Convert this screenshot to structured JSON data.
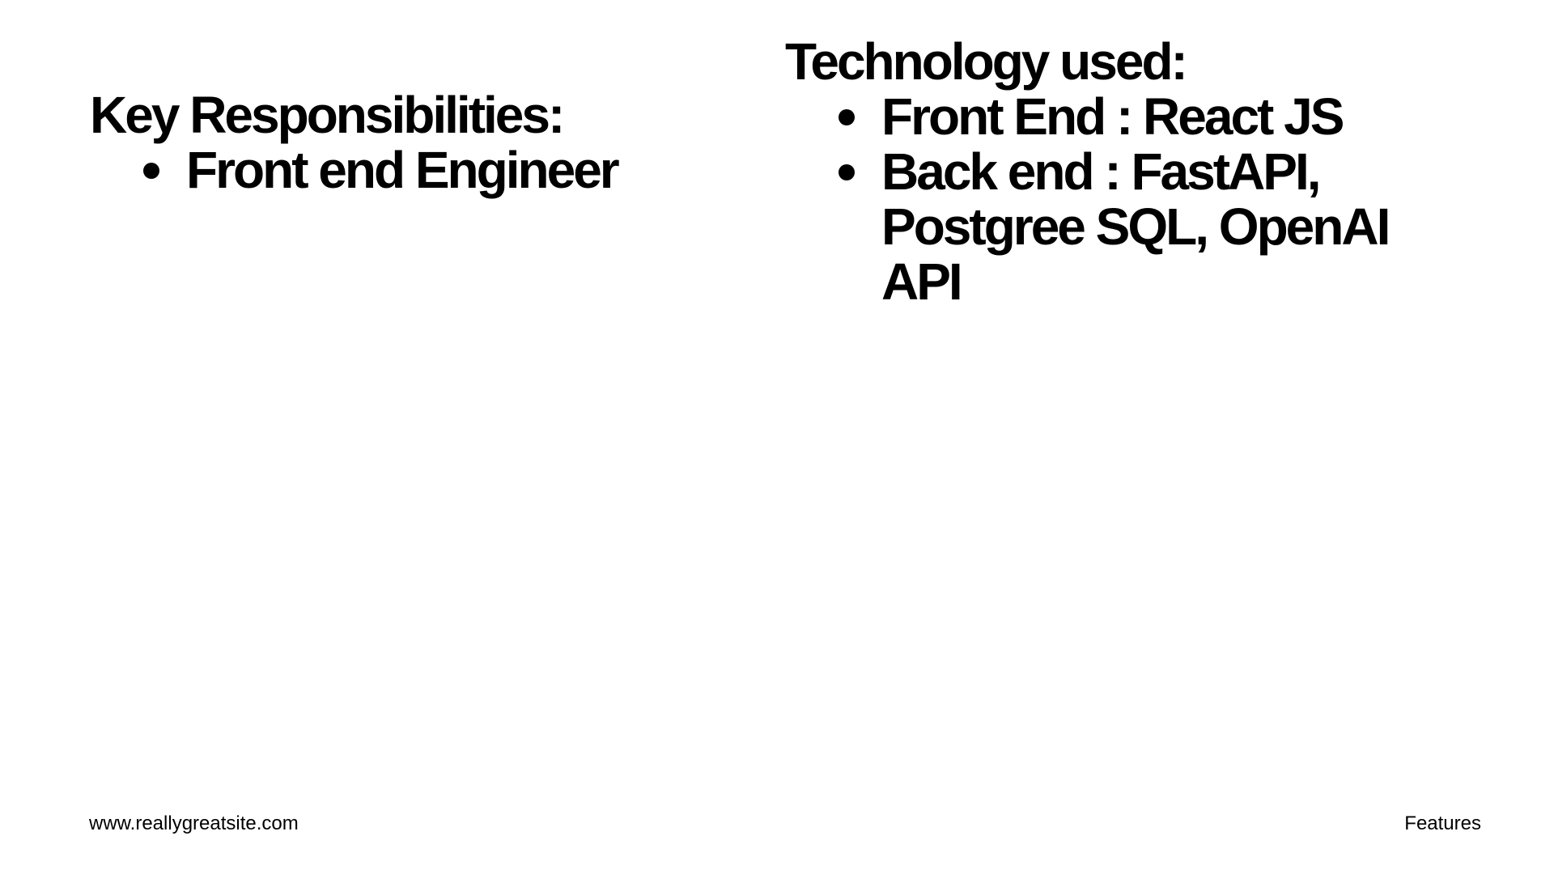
{
  "left": {
    "heading": "Key Responsibilities:",
    "items": [
      "Front end Engineer"
    ]
  },
  "right": {
    "heading": "Technology used:",
    "items": [
      "Front End : React JS",
      "Back end : FastAPI, Postgree SQL, OpenAI API"
    ]
  },
  "footer": {
    "url": "www.reallygreatsite.com",
    "section": "Features"
  }
}
